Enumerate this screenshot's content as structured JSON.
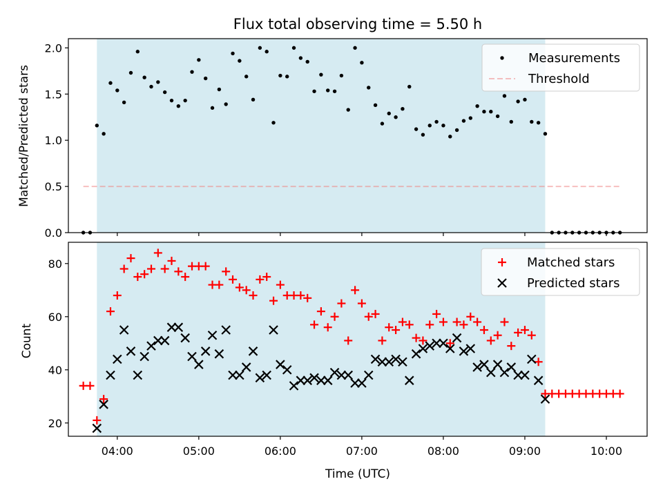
{
  "chart_data": [
    {
      "type": "scatter",
      "title": "Flux total observing time = 5.50 h",
      "ylabel": "Matched/Predicted stars",
      "xlabel": "",
      "x_axis": "time (UTC)",
      "ylim": [
        0,
        2.1
      ],
      "yticks": [
        "0.0",
        "0.5",
        "1.0",
        "1.5",
        "2.0"
      ],
      "xlim": [
        "03:24",
        "10:30"
      ],
      "xticks": [
        "04:00",
        "05:00",
        "06:00",
        "07:00",
        "08:00",
        "09:00",
        "10:00"
      ],
      "xtick_labels_visible": false,
      "observing_window": [
        "03:45",
        "09:15"
      ],
      "legend": "top-right",
      "series": [
        {
          "name": "Measurements",
          "marker": "dot",
          "color": "#000000",
          "points": [
            [
              "03:35",
              0.0
            ],
            [
              "03:40",
              0.0
            ],
            [
              "03:45",
              1.16
            ],
            [
              "03:50",
              1.07
            ],
            [
              "03:55",
              1.62
            ],
            [
              "04:00",
              1.54
            ],
            [
              "04:05",
              1.41
            ],
            [
              "04:10",
              1.73
            ],
            [
              "04:15",
              1.96
            ],
            [
              "04:20",
              1.68
            ],
            [
              "04:25",
              1.58
            ],
            [
              "04:30",
              1.63
            ],
            [
              "04:35",
              1.52
            ],
            [
              "04:40",
              1.43
            ],
            [
              "04:45",
              1.37
            ],
            [
              "04:50",
              1.43
            ],
            [
              "04:55",
              1.74
            ],
            [
              "05:00",
              1.87
            ],
            [
              "05:05",
              1.67
            ],
            [
              "05:10",
              1.35
            ],
            [
              "05:15",
              1.55
            ],
            [
              "05:20",
              1.39
            ],
            [
              "05:25",
              1.94
            ],
            [
              "05:30",
              1.86
            ],
            [
              "05:35",
              1.69
            ],
            [
              "05:40",
              1.44
            ],
            [
              "05:45",
              2.0
            ],
            [
              "05:50",
              1.96
            ],
            [
              "05:55",
              1.19
            ],
            [
              "06:00",
              1.7
            ],
            [
              "06:05",
              1.69
            ],
            [
              "06:10",
              2.0
            ],
            [
              "06:15",
              1.89
            ],
            [
              "06:20",
              1.85
            ],
            [
              "06:25",
              1.53
            ],
            [
              "06:30",
              1.71
            ],
            [
              "06:35",
              1.54
            ],
            [
              "06:40",
              1.53
            ],
            [
              "06:45",
              1.7
            ],
            [
              "06:50",
              1.33
            ],
            [
              "06:55",
              2.0
            ],
            [
              "07:00",
              1.84
            ],
            [
              "07:05",
              1.57
            ],
            [
              "07:10",
              1.38
            ],
            [
              "07:15",
              1.18
            ],
            [
              "07:20",
              1.29
            ],
            [
              "07:25",
              1.25
            ],
            [
              "07:30",
              1.34
            ],
            [
              "07:35",
              1.58
            ],
            [
              "07:40",
              1.12
            ],
            [
              "07:45",
              1.06
            ],
            [
              "07:50",
              1.16
            ],
            [
              "07:55",
              1.2
            ],
            [
              "08:00",
              1.16
            ],
            [
              "08:05",
              1.04
            ],
            [
              "08:10",
              1.11
            ],
            [
              "08:15",
              1.21
            ],
            [
              "08:20",
              1.24
            ],
            [
              "08:25",
              1.37
            ],
            [
              "08:30",
              1.31
            ],
            [
              "08:35",
              1.31
            ],
            [
              "08:40",
              1.26
            ],
            [
              "08:45",
              1.48
            ],
            [
              "08:50",
              1.2
            ],
            [
              "08:55",
              1.42
            ],
            [
              "09:00",
              1.44
            ],
            [
              "09:05",
              1.2
            ],
            [
              "09:10",
              1.19
            ],
            [
              "09:15",
              1.07
            ],
            [
              "09:20",
              0.0
            ],
            [
              "09:25",
              0.0
            ],
            [
              "09:30",
              0.0
            ],
            [
              "09:35",
              0.0
            ],
            [
              "09:40",
              0.0
            ],
            [
              "09:45",
              0.0
            ],
            [
              "09:50",
              0.0
            ],
            [
              "09:55",
              0.0
            ],
            [
              "10:00",
              0.0
            ],
            [
              "10:05",
              0.0
            ],
            [
              "10:10",
              0.0
            ]
          ]
        },
        {
          "name": "Threshold",
          "style": "dashed",
          "color": "#f08080",
          "y": 0.5,
          "x_range": [
            "03:35",
            "10:10"
          ]
        }
      ]
    },
    {
      "type": "scatter",
      "title": "",
      "ylabel": "Count",
      "xlabel": "Time (UTC)",
      "ylim": [
        15,
        88
      ],
      "yticks": [
        "20",
        "40",
        "60",
        "80"
      ],
      "xlim": [
        "03:24",
        "10:30"
      ],
      "xticks": [
        "04:00",
        "05:00",
        "06:00",
        "07:00",
        "08:00",
        "09:00",
        "10:00"
      ],
      "observing_window": [
        "03:45",
        "09:15"
      ],
      "legend": "top-right",
      "series": [
        {
          "name": "Matched stars",
          "marker": "plus",
          "color": "#ff0000",
          "points": [
            [
              "03:35",
              34
            ],
            [
              "03:40",
              34
            ],
            [
              "03:45",
              21
            ],
            [
              "03:50",
              29
            ],
            [
              "03:55",
              62
            ],
            [
              "04:00",
              68
            ],
            [
              "04:05",
              78
            ],
            [
              "04:10",
              82
            ],
            [
              "04:15",
              75
            ],
            [
              "04:20",
              76
            ],
            [
              "04:25",
              78
            ],
            [
              "04:30",
              84
            ],
            [
              "04:35",
              78
            ],
            [
              "04:40",
              81
            ],
            [
              "04:45",
              77
            ],
            [
              "04:50",
              75
            ],
            [
              "04:55",
              79
            ],
            [
              "05:00",
              79
            ],
            [
              "05:05",
              79
            ],
            [
              "05:10",
              72
            ],
            [
              "05:15",
              72
            ],
            [
              "05:20",
              77
            ],
            [
              "05:25",
              74
            ],
            [
              "05:30",
              71
            ],
            [
              "05:35",
              70
            ],
            [
              "05:40",
              68
            ],
            [
              "05:45",
              74
            ],
            [
              "05:50",
              75
            ],
            [
              "05:55",
              66
            ],
            [
              "06:00",
              72
            ],
            [
              "06:05",
              68
            ],
            [
              "06:10",
              68
            ],
            [
              "06:15",
              68
            ],
            [
              "06:20",
              67
            ],
            [
              "06:25",
              57
            ],
            [
              "06:30",
              62
            ],
            [
              "06:35",
              56
            ],
            [
              "06:40",
              60
            ],
            [
              "06:45",
              65
            ],
            [
              "06:50",
              51
            ],
            [
              "06:55",
              70
            ],
            [
              "07:00",
              65
            ],
            [
              "07:05",
              60
            ],
            [
              "07:10",
              61
            ],
            [
              "07:15",
              51
            ],
            [
              "07:20",
              56
            ],
            [
              "07:25",
              55
            ],
            [
              "07:30",
              58
            ],
            [
              "07:35",
              57
            ],
            [
              "07:40",
              52
            ],
            [
              "07:45",
              51
            ],
            [
              "07:50",
              57
            ],
            [
              "07:55",
              61
            ],
            [
              "08:00",
              58
            ],
            [
              "08:05",
              50
            ],
            [
              "08:10",
              58
            ],
            [
              "08:15",
              57
            ],
            [
              "08:20",
              60
            ],
            [
              "08:25",
              58
            ],
            [
              "08:30",
              55
            ],
            [
              "08:35",
              51
            ],
            [
              "08:40",
              53
            ],
            [
              "08:45",
              58
            ],
            [
              "08:50",
              49
            ],
            [
              "08:55",
              54
            ],
            [
              "09:00",
              55
            ],
            [
              "09:05",
              53
            ],
            [
              "09:10",
              43
            ],
            [
              "09:15",
              31
            ],
            [
              "09:20",
              31
            ],
            [
              "09:25",
              31
            ],
            [
              "09:30",
              31
            ],
            [
              "09:35",
              31
            ],
            [
              "09:40",
              31
            ],
            [
              "09:45",
              31
            ],
            [
              "09:50",
              31
            ],
            [
              "09:55",
              31
            ],
            [
              "10:00",
              31
            ],
            [
              "10:05",
              31
            ],
            [
              "10:10",
              31
            ]
          ]
        },
        {
          "name": "Predicted stars",
          "marker": "x",
          "color": "#000000",
          "points": [
            [
              "03:45",
              18
            ],
            [
              "03:50",
              27
            ],
            [
              "03:55",
              38
            ],
            [
              "04:00",
              44
            ],
            [
              "04:05",
              55
            ],
            [
              "04:10",
              47
            ],
            [
              "04:15",
              38
            ],
            [
              "04:20",
              45
            ],
            [
              "04:25",
              49
            ],
            [
              "04:30",
              51
            ],
            [
              "04:35",
              51
            ],
            [
              "04:40",
              56
            ],
            [
              "04:45",
              56
            ],
            [
              "04:50",
              52
            ],
            [
              "04:55",
              45
            ],
            [
              "05:00",
              42
            ],
            [
              "05:05",
              47
            ],
            [
              "05:10",
              53
            ],
            [
              "05:15",
              46
            ],
            [
              "05:20",
              55
            ],
            [
              "05:25",
              38
            ],
            [
              "05:30",
              38
            ],
            [
              "05:35",
              41
            ],
            [
              "05:40",
              47
            ],
            [
              "05:45",
              37
            ],
            [
              "05:50",
              38
            ],
            [
              "05:55",
              55
            ],
            [
              "06:00",
              42
            ],
            [
              "06:05",
              40
            ],
            [
              "06:10",
              34
            ],
            [
              "06:15",
              36
            ],
            [
              "06:20",
              36
            ],
            [
              "06:25",
              37
            ],
            [
              "06:30",
              36
            ],
            [
              "06:35",
              36
            ],
            [
              "06:40",
              39
            ],
            [
              "06:45",
              38
            ],
            [
              "06:50",
              38
            ],
            [
              "06:55",
              35
            ],
            [
              "07:00",
              35
            ],
            [
              "07:05",
              38
            ],
            [
              "07:10",
              44
            ],
            [
              "07:15",
              43
            ],
            [
              "07:20",
              43
            ],
            [
              "07:25",
              44
            ],
            [
              "07:30",
              43
            ],
            [
              "07:35",
              36
            ],
            [
              "07:40",
              46
            ],
            [
              "07:45",
              48
            ],
            [
              "07:50",
              49
            ],
            [
              "07:55",
              50
            ],
            [
              "08:00",
              50
            ],
            [
              "08:05",
              48
            ],
            [
              "08:10",
              52
            ],
            [
              "08:15",
              47
            ],
            [
              "08:20",
              48
            ],
            [
              "08:25",
              41
            ],
            [
              "08:30",
              42
            ],
            [
              "08:35",
              39
            ],
            [
              "08:40",
              42
            ],
            [
              "08:45",
              39
            ],
            [
              "08:50",
              41
            ],
            [
              "08:55",
              38
            ],
            [
              "09:00",
              38
            ],
            [
              "09:05",
              44
            ],
            [
              "09:10",
              36
            ],
            [
              "09:15",
              29
            ]
          ]
        }
      ]
    }
  ],
  "colors": {
    "window_fill": "#add8e6",
    "matched": "#ff0000",
    "predicted": "#000000",
    "measurement": "#000000",
    "threshold": "#f08080"
  }
}
